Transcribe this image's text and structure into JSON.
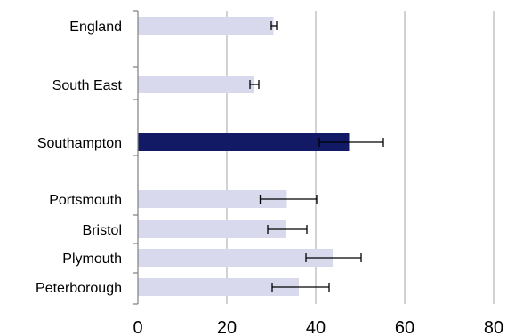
{
  "chart_data": {
    "type": "bar",
    "orientation": "horizontal",
    "title": "",
    "xlabel": "",
    "ylabel": "",
    "xlim": [
      0,
      80
    ],
    "x_ticks": [
      0,
      20,
      40,
      60,
      80
    ],
    "x_tick_labels": [
      "0",
      "20",
      "40",
      "60",
      "80"
    ],
    "grid": "vertical",
    "legend": "none",
    "categories": [
      "England",
      "South East",
      "Southampton",
      "Portsmouth",
      "Bristol",
      "Plymouth",
      "Peterborough"
    ],
    "values": [
      30.5,
      26.2,
      47.5,
      33.5,
      33.2,
      43.8,
      36.2
    ],
    "error_low": [
      30.0,
      25.2,
      40.8,
      27.5,
      29.2,
      37.8,
      30.2
    ],
    "error_high": [
      31.2,
      27.2,
      55.2,
      40.2,
      38.0,
      50.2,
      43.0
    ],
    "highlight": "Southampton",
    "colors": {
      "bar": "#d9d9ee",
      "highlight_bar": "#121a66",
      "grid": "#a6a6a6",
      "axis": "#7f7f7f",
      "error_bar": "#000000"
    }
  }
}
